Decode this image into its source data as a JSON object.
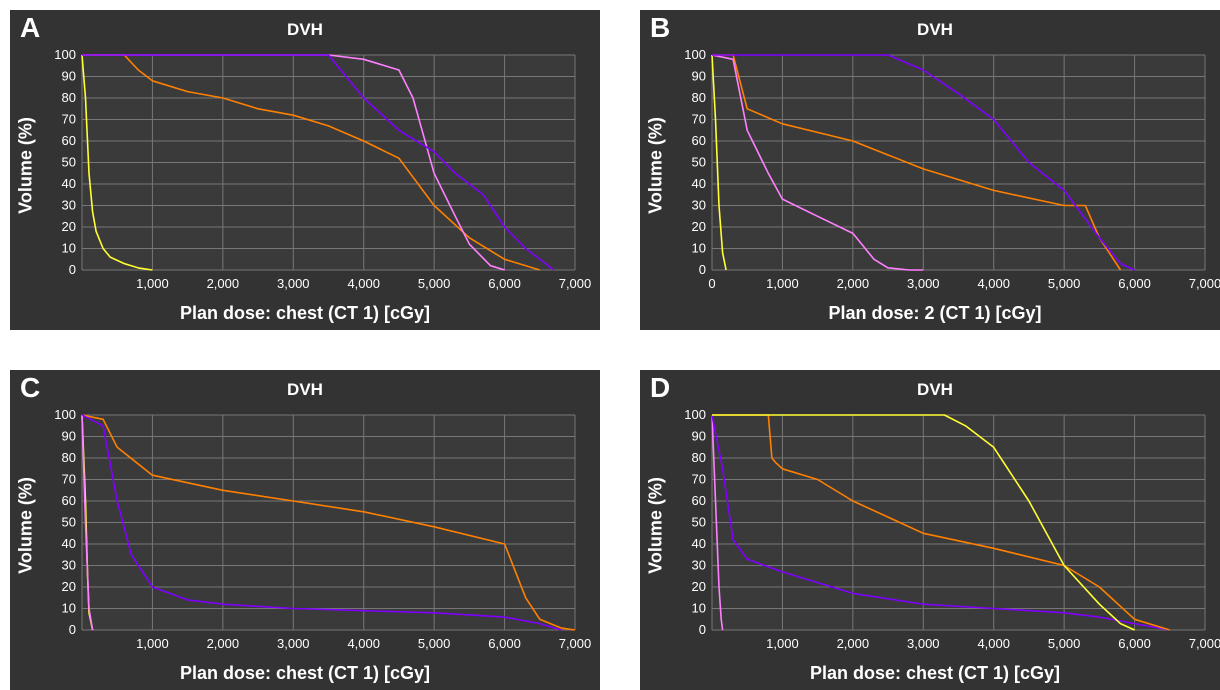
{
  "chart_data": [
    {
      "panel": "A",
      "type": "line",
      "title": "DVH",
      "xlabel": "Plan dose: chest (CT 1) [cGy]",
      "ylabel": "Volume (%)",
      "xlim": [
        0,
        7000
      ],
      "ylim": [
        0,
        100
      ],
      "xticks": [
        "1,000",
        "2,000",
        "3,000",
        "4,000",
        "5,000",
        "6,000",
        "7,000"
      ],
      "yticks": [
        "0",
        "10",
        "20",
        "30",
        "40",
        "50",
        "60",
        "70",
        "80",
        "90",
        "100"
      ],
      "grid": true,
      "series": [
        {
          "color": "#ffff33",
          "x": [
            0,
            50,
            100,
            150,
            200,
            300,
            400,
            600,
            800,
            1000
          ],
          "y": [
            100,
            80,
            45,
            27,
            18,
            10,
            6,
            3,
            1,
            0
          ]
        },
        {
          "color": "#ff8000",
          "x": [
            0,
            600,
            800,
            1000,
            1500,
            2000,
            2500,
            3000,
            3500,
            4000,
            4500,
            5000,
            5500,
            6000,
            6500
          ],
          "y": [
            100,
            100,
            93,
            88,
            83,
            80,
            75,
            72,
            67,
            60,
            52,
            30,
            15,
            5,
            0
          ]
        },
        {
          "color": "#ff80ff",
          "x": [
            0,
            3500,
            4000,
            4500,
            4700,
            5000,
            5300,
            5500,
            5800,
            6000
          ],
          "y": [
            100,
            100,
            98,
            93,
            80,
            45,
            25,
            12,
            2,
            0
          ]
        },
        {
          "color": "#8000ff",
          "x": [
            0,
            3500,
            3700,
            4000,
            4500,
            5000,
            5300,
            5700,
            6000,
            6300,
            6700
          ],
          "y": [
            100,
            100,
            92,
            80,
            65,
            55,
            45,
            35,
            20,
            10,
            0
          ]
        }
      ]
    },
    {
      "panel": "B",
      "type": "line",
      "title": "DVH",
      "xlabel": "Plan dose: 2 (CT 1) [cGy]",
      "ylabel": "Volume (%)",
      "xlim": [
        0,
        7000
      ],
      "ylim": [
        0,
        100
      ],
      "xticks": [
        "0",
        "1,000",
        "2,000",
        "3,000",
        "4,000",
        "5,000",
        "6,000",
        "7,000"
      ],
      "yticks": [
        "0",
        "10",
        "20",
        "30",
        "40",
        "50",
        "60",
        "70",
        "80",
        "90",
        "100"
      ],
      "grid": true,
      "series": [
        {
          "color": "#ffff33",
          "x": [
            0,
            50,
            100,
            150,
            200
          ],
          "y": [
            100,
            70,
            30,
            8,
            0
          ]
        },
        {
          "color": "#ff8000",
          "x": [
            0,
            300,
            500,
            1000,
            2000,
            3000,
            4000,
            5000,
            5300,
            5500,
            5800
          ],
          "y": [
            100,
            100,
            75,
            68,
            60,
            47,
            37,
            30,
            30,
            15,
            0
          ]
        },
        {
          "color": "#ff80ff",
          "x": [
            0,
            300,
            500,
            800,
            1000,
            1500,
            2000,
            2300,
            2500,
            2800,
            3000
          ],
          "y": [
            100,
            98,
            65,
            45,
            33,
            25,
            17,
            5,
            1,
            0,
            0
          ]
        },
        {
          "color": "#8000ff",
          "x": [
            0,
            2500,
            3000,
            3500,
            4000,
            4500,
            5000,
            5500,
            5800,
            6000
          ],
          "y": [
            100,
            100,
            93,
            82,
            70,
            50,
            37,
            15,
            3,
            0
          ]
        }
      ]
    },
    {
      "panel": "C",
      "type": "line",
      "title": "DVH",
      "xlabel": "Plan dose: chest (CT 1) [cGy]",
      "ylabel": "Volume (%)",
      "xlim": [
        0,
        7000
      ],
      "ylim": [
        0,
        100
      ],
      "xticks": [
        "1,000",
        "2,000",
        "3,000",
        "4,000",
        "5,000",
        "6,000",
        "7,000"
      ],
      "yticks": [
        "0",
        "10",
        "20",
        "30",
        "40",
        "50",
        "60",
        "70",
        "80",
        "90",
        "100"
      ],
      "grid": true,
      "series": [
        {
          "color": "#ffff33",
          "x": [
            0,
            50,
            80,
            100,
            150
          ],
          "y": [
            100,
            60,
            25,
            8,
            0
          ]
        },
        {
          "color": "#ff80ff",
          "x": [
            0,
            50,
            100,
            150
          ],
          "y": [
            100,
            50,
            10,
            0
          ]
        },
        {
          "color": "#ff8000",
          "x": [
            0,
            300,
            500,
            1000,
            2000,
            3000,
            4000,
            5000,
            6000,
            6300,
            6500,
            6800,
            7000
          ],
          "y": [
            100,
            98,
            85,
            72,
            65,
            60,
            55,
            48,
            40,
            15,
            5,
            1,
            0
          ]
        },
        {
          "color": "#8000ff",
          "x": [
            0,
            300,
            500,
            700,
            1000,
            1500,
            2000,
            3000,
            4000,
            5000,
            6000,
            6500,
            6800
          ],
          "y": [
            100,
            95,
            60,
            35,
            20,
            14,
            12,
            10,
            9,
            8,
            6,
            3,
            0
          ]
        }
      ]
    },
    {
      "panel": "D",
      "type": "line",
      "title": "DVH",
      "xlabel": "Plan dose: chest (CT 1) [cGy]",
      "ylabel": "Volume (%)",
      "xlim": [
        0,
        7000
      ],
      "ylim": [
        0,
        100
      ],
      "xticks": [
        "1,000",
        "2,000",
        "3,000",
        "4,000",
        "5,000",
        "6,000",
        "7,000"
      ],
      "yticks": [
        "0",
        "10",
        "20",
        "30",
        "40",
        "50",
        "60",
        "70",
        "80",
        "90",
        "100"
      ],
      "grid": true,
      "series": [
        {
          "color": "#ff80ff",
          "x": [
            0,
            50,
            100,
            130,
            150
          ],
          "y": [
            100,
            60,
            20,
            5,
            0
          ]
        },
        {
          "color": "#8000ff",
          "x": [
            0,
            150,
            300,
            500,
            1000,
            2000,
            3000,
            4000,
            5000,
            5500,
            6000,
            6500
          ],
          "y": [
            100,
            75,
            42,
            33,
            27,
            17,
            12,
            10,
            8,
            6,
            3,
            0
          ]
        },
        {
          "color": "#ff8000",
          "x": [
            0,
            800,
            850,
            900,
            1000,
            1500,
            2000,
            3000,
            4000,
            5000,
            5500,
            6000,
            6500
          ],
          "y": [
            100,
            100,
            80,
            78,
            75,
            70,
            60,
            45,
            38,
            30,
            20,
            5,
            0
          ]
        },
        {
          "color": "#ffff33",
          "x": [
            0,
            3300,
            3600,
            4000,
            4500,
            5000,
            5500,
            5800,
            6000
          ],
          "y": [
            100,
            100,
            95,
            85,
            60,
            30,
            12,
            3,
            0
          ]
        }
      ]
    }
  ]
}
